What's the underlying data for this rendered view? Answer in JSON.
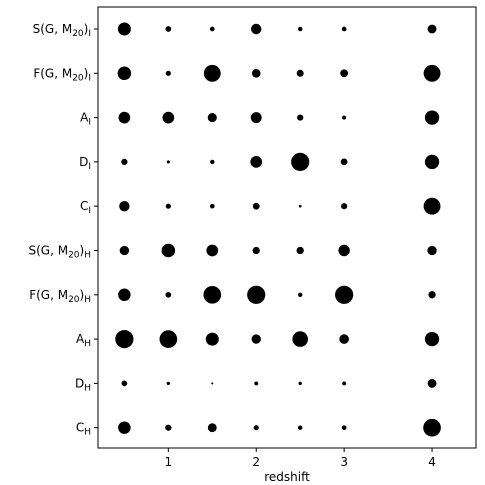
{
  "chart_data": {
    "type": "scatter",
    "xlabel": "redshift",
    "x_ticks": [
      1,
      2,
      3,
      4
    ],
    "xlim": [
      0.2,
      4.5
    ],
    "x": [
      0.5,
      1.0,
      1.5,
      2.0,
      2.5,
      3.0,
      4.0
    ],
    "categories": [
      {
        "base": "S(G, M",
        "sub1": "20",
        "mid": ")",
        "sub2": "I"
      },
      {
        "base": "F(G, M",
        "sub1": "20",
        "mid": ")",
        "sub2": "I"
      },
      {
        "base": "A",
        "sub1": "",
        "mid": "",
        "sub2": "I"
      },
      {
        "base": "D",
        "sub1": "",
        "mid": "",
        "sub2": "I"
      },
      {
        "base": "C",
        "sub1": "",
        "mid": "",
        "sub2": "I"
      },
      {
        "base": "S(G, M",
        "sub1": "20",
        "mid": ")",
        "sub2": "H"
      },
      {
        "base": "F(G, M",
        "sub1": "20",
        "mid": ")",
        "sub2": "H"
      },
      {
        "base": "A",
        "sub1": "",
        "mid": "",
        "sub2": "H"
      },
      {
        "base": "D",
        "sub1": "",
        "mid": "",
        "sub2": "H"
      },
      {
        "base": "C",
        "sub1": "",
        "mid": "",
        "sub2": "H"
      }
    ],
    "sizes": [
      [
        0.5,
        0.22,
        0.18,
        0.4,
        0.17,
        0.18,
        0.34
      ],
      [
        0.52,
        0.2,
        0.65,
        0.33,
        0.27,
        0.3,
        0.65
      ],
      [
        0.45,
        0.45,
        0.35,
        0.42,
        0.24,
        0.15,
        0.55
      ],
      [
        0.24,
        0.12,
        0.17,
        0.45,
        0.7,
        0.26,
        0.55
      ],
      [
        0.4,
        0.2,
        0.18,
        0.26,
        0.1,
        0.24,
        0.65
      ],
      [
        0.36,
        0.52,
        0.45,
        0.28,
        0.28,
        0.44,
        0.36
      ],
      [
        0.48,
        0.22,
        0.68,
        0.7,
        0.17,
        0.7,
        0.28
      ],
      [
        0.7,
        0.68,
        0.5,
        0.36,
        0.6,
        0.37,
        0.55
      ],
      [
        0.22,
        0.13,
        0.08,
        0.15,
        0.13,
        0.15,
        0.34
      ],
      [
        0.48,
        0.24,
        0.34,
        0.2,
        0.17,
        0.18,
        0.68
      ]
    ],
    "marker_color": "#000000",
    "grid": false,
    "legend": "none"
  }
}
